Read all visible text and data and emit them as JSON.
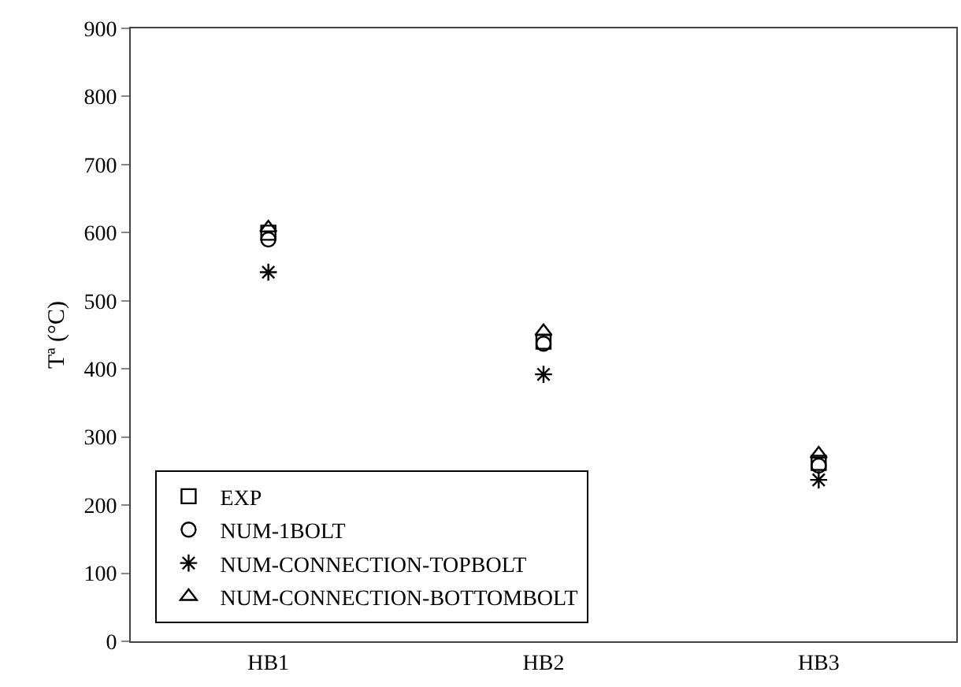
{
  "chart_data": {
    "type": "scatter",
    "ylabel": "Tª (°C)",
    "categories": [
      "HB1",
      "HB2",
      "HB3"
    ],
    "ylim": [
      0,
      900
    ],
    "yticks": [
      0,
      100,
      200,
      300,
      400,
      500,
      600,
      700,
      800,
      900
    ],
    "grid": false,
    "legend": "bottom left",
    "series": [
      {
        "name": "EXP",
        "color": "#000000",
        "marker": "square",
        "values": [
          600,
          440,
          262
        ]
      },
      {
        "name": "NUM-1BOLT",
        "color": "#000000",
        "marker": "circle",
        "values": [
          590,
          437,
          258
        ]
      },
      {
        "name": "NUM-CONNECTION-TOPBOLT",
        "color": "#000000",
        "marker": "cross",
        "values": [
          542,
          392,
          237
        ]
      },
      {
        "name": "NUM-CONNECTION-BOTTOMBOLT",
        "color": "#000000",
        "marker": "triangle",
        "values": [
          607,
          455,
          275
        ]
      }
    ]
  }
}
